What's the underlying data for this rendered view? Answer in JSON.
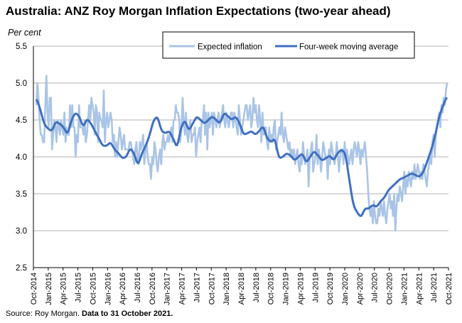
{
  "title": "Australia: ANZ Roy Morgan Inflation Expectations (two-year ahead)",
  "source_text": "Source: Roy Morgan. ",
  "source_bold": "Data to 31 October 2021.",
  "colors": {
    "expected": "#a9c4e6",
    "moving_avg": "#3f6fbf",
    "grid": "#b0b0b0",
    "axis": "#000000"
  },
  "chart_data": {
    "type": "line",
    "title": "Australia: ANZ Roy Morgan Inflation Expectations (two-year ahead)",
    "ylabel": "Per cent",
    "ylim": [
      2.5,
      5.5
    ],
    "yticks": [
      "2.5",
      "3.0",
      "3.5",
      "4.0",
      "4.5",
      "5.0",
      "5.5"
    ],
    "grid": true,
    "legend_position": "top-right",
    "x_ticks": [
      "Oct-2014",
      "Jan-2015",
      "Apr-2015",
      "Jul-2015",
      "Oct-2015",
      "Jan-2016",
      "Apr-2016",
      "Jul-2016",
      "Oct-2016",
      "Jan-2017",
      "Apr-2017",
      "Jul-2017",
      "Oct-2017",
      "Jan-2018",
      "Apr-2018",
      "Jul-2018",
      "Oct-2018",
      "Jan-2019",
      "Apr-2019",
      "Jul-2019",
      "Oct-2019",
      "Jan-2020",
      "Apr-2020",
      "Jul-2020",
      "Oct-2020",
      "Jan-2021",
      "Apr-2021",
      "Jul-2021",
      "Oct-2021"
    ],
    "monthly_average": [
      4.8,
      4.65,
      4.45,
      4.38,
      4.35,
      4.48,
      4.45,
      4.4,
      4.3,
      4.5,
      4.6,
      4.55,
      4.4,
      4.52,
      4.45,
      4.35,
      4.25,
      4.15,
      4.15,
      4.2,
      4.1,
      4.05,
      3.98,
      4.0,
      4.12,
      4.05,
      3.88,
      4.05,
      4.15,
      4.3,
      4.5,
      4.55,
      4.35,
      4.32,
      4.35,
      4.25,
      4.12,
      4.4,
      4.5,
      4.35,
      4.45,
      4.55,
      4.5,
      4.45,
      4.5,
      4.55,
      4.5,
      4.45,
      4.6,
      4.55,
      4.5,
      4.55,
      4.45,
      4.3,
      4.32,
      4.35,
      4.3,
      4.35,
      4.42,
      4.25,
      4.2,
      4.25,
      3.98,
      4.0,
      4.05,
      4.02,
      3.95,
      4.0,
      4.05,
      3.92,
      4.0,
      4.08,
      4.02,
      3.95,
      3.98,
      4.02,
      3.95,
      4.05,
      4.1,
      4.05,
      3.7,
      3.35,
      3.25,
      3.18,
      3.3,
      3.3,
      3.35,
      3.32,
      3.4,
      3.45,
      3.55,
      3.6,
      3.65,
      3.7,
      3.72,
      3.75,
      3.78,
      3.75,
      3.73,
      3.8,
      3.95,
      4.1,
      4.3,
      4.55,
      4.7,
      4.82
    ],
    "series": [
      {
        "name": "Expected inflation",
        "values": [
          4.7,
          5.0,
          4.8,
          4.5,
          4.3,
          4.3,
          4.2,
          4.2,
          4.7,
          5.1,
          4.6,
          4.4,
          4.8,
          4.8,
          4.1,
          4.3,
          4.5,
          4.4,
          4.2,
          4.5,
          4.4,
          4.3,
          4.5,
          4.4,
          4.3,
          4.6,
          4.2,
          4.4,
          4.3,
          4.3,
          4.7,
          4.4,
          4.7,
          4.4,
          4.4,
          4.0,
          4.3,
          4.2,
          4.7,
          4.4,
          4.4,
          4.4,
          4.3,
          4.5,
          4.2,
          4.3,
          4.5,
          4.7,
          4.5,
          4.8,
          4.7,
          4.6,
          4.3,
          4.7,
          4.6,
          4.2,
          4.6,
          4.5,
          4.5,
          4.4,
          4.9,
          4.2,
          4.5,
          4.6,
          4.4,
          4.5,
          4.6,
          4.5,
          4.2,
          4.3,
          4.0,
          4.2,
          4.0,
          4.2,
          4.4,
          4.3,
          4.1,
          4.2,
          4.3,
          4.1,
          4.1,
          4.1,
          4.1,
          4.2,
          4.2,
          4.1,
          4.0,
          3.9,
          4.1,
          4.2,
          4.0,
          3.9,
          4.2,
          4.1,
          4.2,
          4.3,
          3.9,
          4.1,
          4.2,
          4.0,
          3.9,
          3.9,
          3.7,
          4.0,
          3.9,
          4.2,
          4.1,
          3.9,
          3.8,
          4.0,
          4.1,
          3.9,
          4.2,
          4.3,
          4.1,
          4.2,
          4.2,
          4.3,
          4.2,
          4.3,
          4.4,
          4.2,
          4.5,
          4.5,
          4.7,
          4.6,
          4.6,
          4.5,
          4.2,
          4.4,
          4.8,
          4.5,
          4.3,
          4.6,
          4.3,
          4.2,
          4.4,
          4.5,
          4.2,
          4.3,
          4.3,
          4.4,
          4.0,
          4.2,
          4.3,
          4.4,
          4.2,
          4.5,
          4.5,
          4.7,
          4.3,
          4.6,
          4.1,
          4.6,
          4.4,
          4.5,
          4.6,
          4.3,
          4.6,
          4.5,
          4.4,
          4.5,
          4.6,
          4.4,
          4.5,
          4.6,
          4.7,
          4.5,
          4.4,
          4.6,
          4.5,
          4.4,
          4.5,
          4.6,
          4.6,
          4.4,
          4.6,
          4.5,
          4.4,
          4.3,
          4.7,
          4.5,
          4.3,
          4.4,
          4.5,
          4.6,
          4.7,
          4.7,
          4.5,
          4.6,
          4.7,
          4.4,
          4.5,
          4.8,
          4.6,
          4.7,
          4.5,
          4.4,
          4.7,
          4.5,
          4.2,
          4.6,
          4.3,
          4.4,
          4.4,
          4.2,
          4.1,
          4.4,
          4.2,
          4.3,
          4.2,
          4.4,
          4.5,
          4.1,
          4.2,
          4.3,
          4.4,
          4.3,
          4.6,
          4.3,
          4.2,
          4.4,
          4.3,
          4.2,
          4.1,
          4.2,
          4.0,
          4.1,
          4.0,
          4.1,
          3.9,
          4.0,
          4.1,
          3.9,
          3.8,
          4.0,
          3.9,
          4.2,
          4.0,
          3.9,
          4.0,
          4.1,
          3.6,
          4.0,
          4.1,
          4.2,
          3.8,
          3.9,
          4.0,
          4.3,
          3.9,
          4.1,
          4.0,
          3.8,
          4.0,
          4.2,
          4.1,
          4.0,
          4.0,
          3.7,
          4.1,
          3.9,
          4.2,
          4.1,
          4.0,
          3.9,
          4.0,
          4.2,
          4.0,
          3.8,
          4.0,
          4.1,
          4.1,
          3.9,
          4.2,
          4.0,
          4.1,
          4.0,
          3.9,
          4.0,
          4.1,
          3.9,
          4.1,
          4.2,
          4.1,
          4.0,
          4.2,
          4.1,
          3.9,
          4.1,
          4.0,
          4.1,
          4.2,
          4.0,
          3.8,
          3.5,
          3.3,
          3.2,
          3.3,
          3.1,
          3.4,
          3.2,
          3.1,
          3.1,
          3.3,
          3.2,
          3.4,
          3.3,
          3.2,
          3.4,
          3.2,
          3.1,
          3.3,
          3.4,
          3.5,
          3.3,
          3.4,
          3.2,
          3.5,
          3.0,
          3.3,
          3.5,
          3.4,
          3.6,
          3.5,
          3.4,
          3.6,
          3.8,
          3.5,
          3.7,
          3.6,
          3.8,
          3.7,
          3.6,
          3.8,
          3.7,
          3.9,
          3.7,
          3.8,
          3.9,
          3.8,
          3.7,
          3.8,
          3.7,
          3.9,
          3.8,
          3.7,
          3.6,
          3.8,
          3.9,
          4.0,
          3.9,
          4.2,
          4.3,
          4.0,
          4.3,
          4.4,
          4.5,
          4.6,
          4.4,
          4.7,
          4.6,
          4.8,
          4.7,
          4.9,
          5.0
        ]
      },
      {
        "name": "Four-week moving average",
        "values": []
      }
    ]
  }
}
